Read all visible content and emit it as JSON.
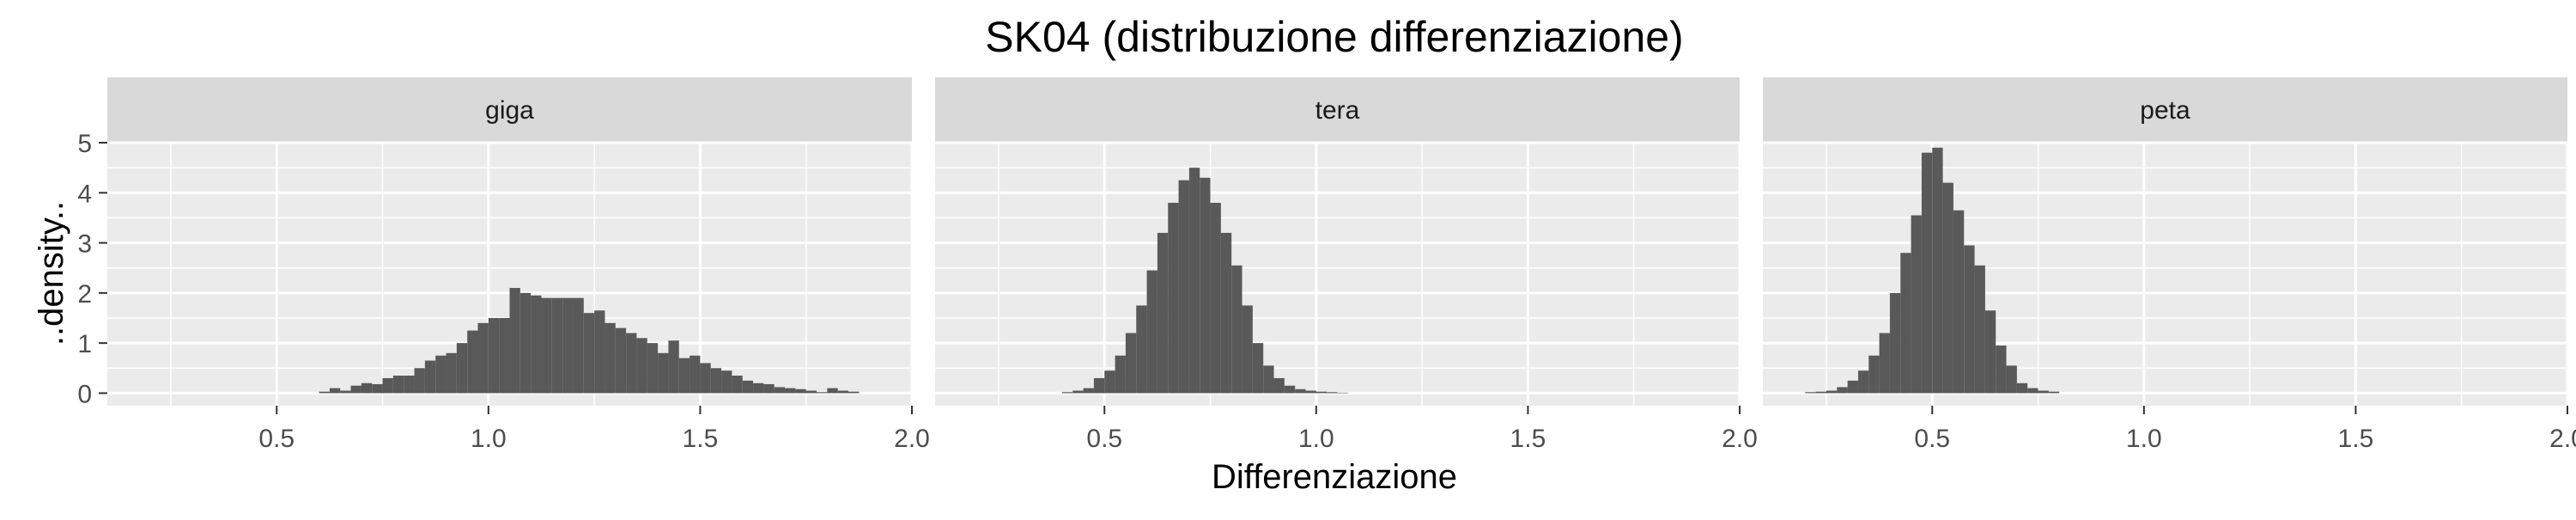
{
  "chart_data": {
    "type": "bar",
    "title": "SK04 (distribuzione differenziazione)",
    "xlabel": "Differenziazione",
    "ylabel": "..density..",
    "xlim": [
      0.1,
      2.0
    ],
    "ylim": [
      -0.25,
      5.0
    ],
    "x_ticks": [
      "0.5",
      "1.0",
      "1.5",
      "2.0"
    ],
    "y_ticks": [
      "0",
      "1",
      "2",
      "3",
      "4",
      "5"
    ],
    "bin_width": 0.025,
    "grid": true,
    "bar_color": "#595959",
    "panel_background": "#ebebeb",
    "strip_background": "#d9d9d9",
    "series": [
      {
        "name": "giga",
        "bins": [
          [
            0.6,
            0.03
          ],
          [
            0.625,
            0.1
          ],
          [
            0.65,
            0.05
          ],
          [
            0.675,
            0.15
          ],
          [
            0.7,
            0.2
          ],
          [
            0.725,
            0.18
          ],
          [
            0.75,
            0.3
          ],
          [
            0.775,
            0.35
          ],
          [
            0.8,
            0.35
          ],
          [
            0.825,
            0.5
          ],
          [
            0.85,
            0.65
          ],
          [
            0.875,
            0.75
          ],
          [
            0.9,
            0.8
          ],
          [
            0.925,
            1.0
          ],
          [
            0.95,
            1.25
          ],
          [
            0.975,
            1.4
          ],
          [
            1.0,
            1.5
          ],
          [
            1.025,
            1.5
          ],
          [
            1.05,
            2.1
          ],
          [
            1.075,
            2.0
          ],
          [
            1.1,
            1.95
          ],
          [
            1.125,
            1.9
          ],
          [
            1.15,
            1.9
          ],
          [
            1.175,
            1.9
          ],
          [
            1.2,
            1.9
          ],
          [
            1.225,
            1.6
          ],
          [
            1.25,
            1.65
          ],
          [
            1.275,
            1.4
          ],
          [
            1.3,
            1.3
          ],
          [
            1.325,
            1.2
          ],
          [
            1.35,
            1.1
          ],
          [
            1.375,
            1.0
          ],
          [
            1.4,
            0.8
          ],
          [
            1.425,
            1.05
          ],
          [
            1.45,
            0.7
          ],
          [
            1.475,
            0.75
          ],
          [
            1.5,
            0.6
          ],
          [
            1.525,
            0.5
          ],
          [
            1.55,
            0.45
          ],
          [
            1.575,
            0.35
          ],
          [
            1.6,
            0.25
          ],
          [
            1.625,
            0.2
          ],
          [
            1.65,
            0.18
          ],
          [
            1.675,
            0.12
          ],
          [
            1.7,
            0.1
          ],
          [
            1.725,
            0.08
          ],
          [
            1.75,
            0.05
          ],
          [
            1.775,
            0.02
          ],
          [
            1.8,
            0.1
          ],
          [
            1.825,
            0.05
          ],
          [
            1.85,
            0.03
          ]
        ]
      },
      {
        "name": "tera",
        "bins": [
          [
            0.4,
            0.02
          ],
          [
            0.425,
            0.05
          ],
          [
            0.45,
            0.1
          ],
          [
            0.475,
            0.3
          ],
          [
            0.5,
            0.45
          ],
          [
            0.525,
            0.75
          ],
          [
            0.55,
            1.2
          ],
          [
            0.575,
            1.75
          ],
          [
            0.6,
            2.45
          ],
          [
            0.625,
            3.2
          ],
          [
            0.65,
            3.8
          ],
          [
            0.675,
            4.25
          ],
          [
            0.7,
            4.5
          ],
          [
            0.725,
            4.3
          ],
          [
            0.75,
            3.8
          ],
          [
            0.775,
            3.2
          ],
          [
            0.8,
            2.55
          ],
          [
            0.825,
            1.75
          ],
          [
            0.85,
            1.0
          ],
          [
            0.875,
            0.55
          ],
          [
            0.9,
            0.3
          ],
          [
            0.925,
            0.15
          ],
          [
            0.95,
            0.08
          ],
          [
            0.975,
            0.05
          ],
          [
            1.0,
            0.03
          ],
          [
            1.025,
            0.02
          ],
          [
            1.05,
            0.01
          ]
        ]
      },
      {
        "name": "peta",
        "bins": [
          [
            0.2,
            0.02
          ],
          [
            0.225,
            0.03
          ],
          [
            0.25,
            0.05
          ],
          [
            0.275,
            0.12
          ],
          [
            0.3,
            0.25
          ],
          [
            0.325,
            0.45
          ],
          [
            0.35,
            0.75
          ],
          [
            0.375,
            1.2
          ],
          [
            0.4,
            2.0
          ],
          [
            0.425,
            2.8
          ],
          [
            0.45,
            3.55
          ],
          [
            0.475,
            4.8
          ],
          [
            0.5,
            4.9
          ],
          [
            0.525,
            4.2
          ],
          [
            0.55,
            3.65
          ],
          [
            0.575,
            2.95
          ],
          [
            0.6,
            2.55
          ],
          [
            0.625,
            1.65
          ],
          [
            0.65,
            0.95
          ],
          [
            0.675,
            0.55
          ],
          [
            0.7,
            0.2
          ],
          [
            0.725,
            0.1
          ],
          [
            0.75,
            0.05
          ],
          [
            0.775,
            0.03
          ]
        ]
      }
    ]
  }
}
